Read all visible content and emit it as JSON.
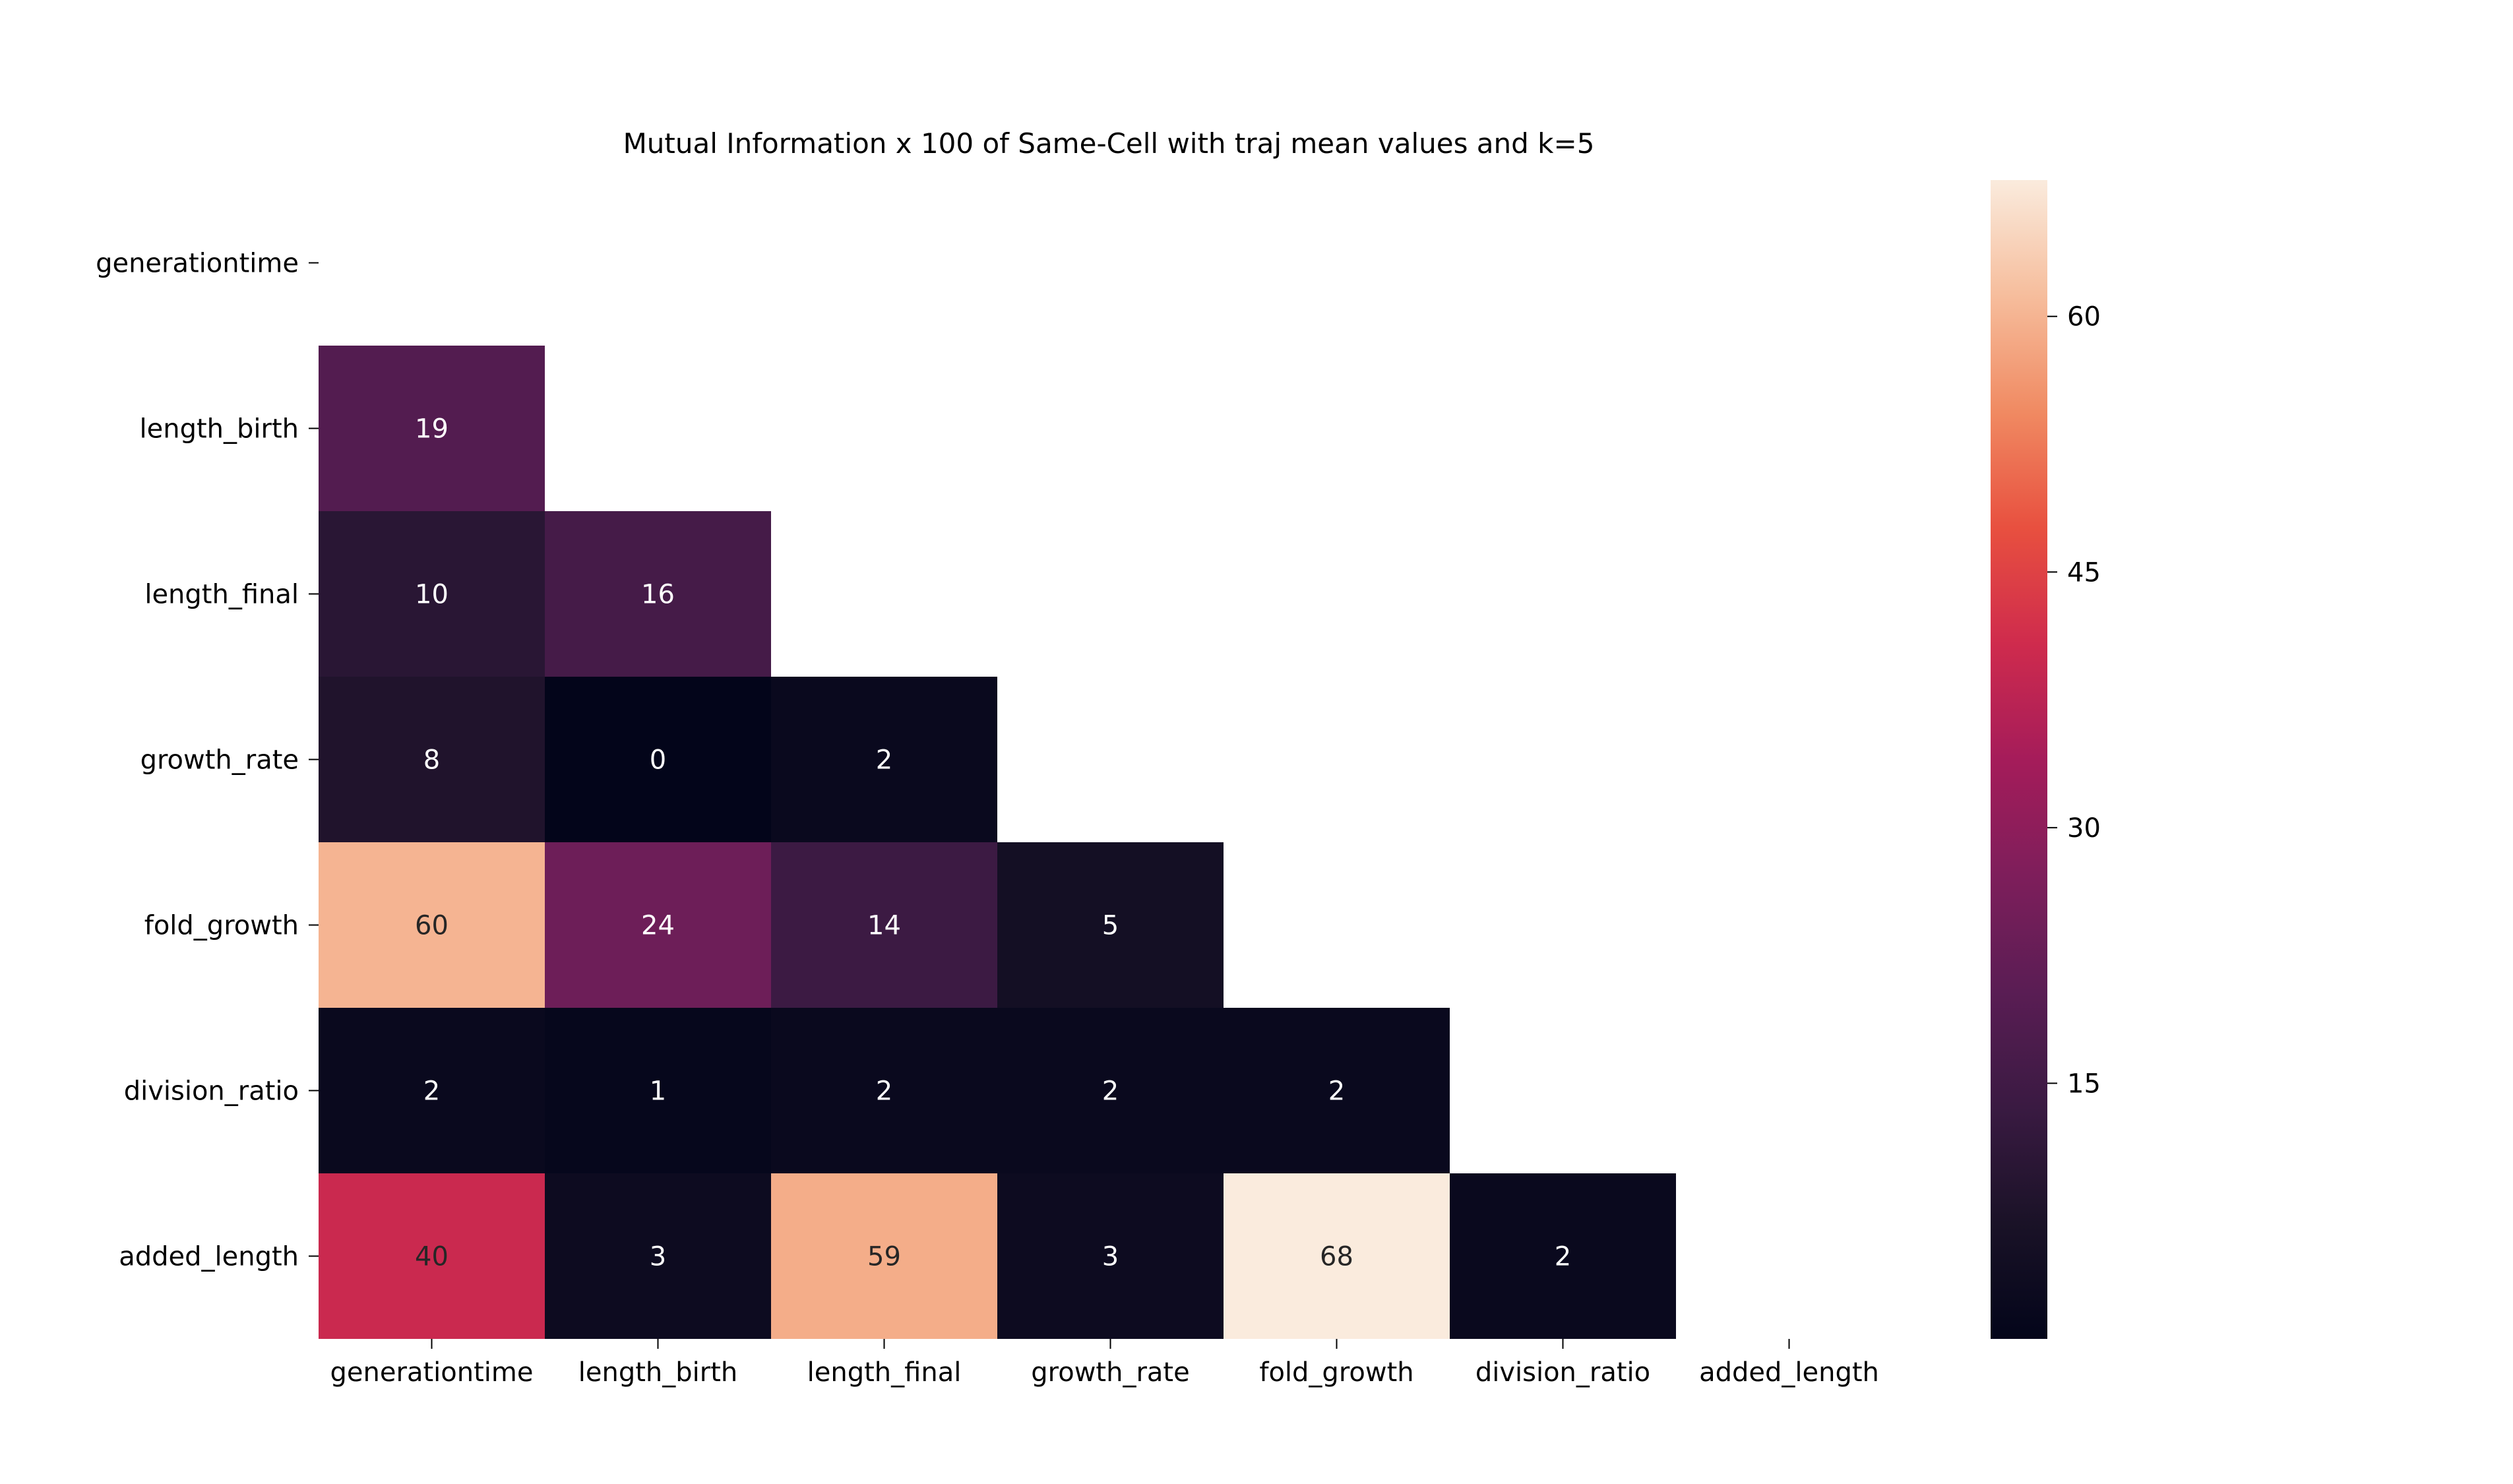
{
  "chart_data": {
    "type": "heatmap",
    "title": "Mutual Information x 100 of Same-Cell with traj mean values and k=5",
    "row_labels": [
      "generationtime",
      "length_birth",
      "length_final",
      "growth_rate",
      "fold_growth",
      "division_ratio",
      "added_length"
    ],
    "col_labels": [
      "generationtime",
      "length_birth",
      "length_final",
      "growth_rate",
      "fold_growth",
      "division_ratio",
      "added_length"
    ],
    "mask": "upper-triangle-including-diagonal",
    "values": [
      [
        null,
        null,
        null,
        null,
        null,
        null,
        null
      ],
      [
        19,
        null,
        null,
        null,
        null,
        null,
        null
      ],
      [
        10,
        16,
        null,
        null,
        null,
        null,
        null
      ],
      [
        8,
        0,
        2,
        null,
        null,
        null,
        null
      ],
      [
        60,
        24,
        14,
        5,
        null,
        null,
        null
      ],
      [
        2,
        1,
        2,
        2,
        2,
        null,
        null
      ],
      [
        40,
        3,
        59,
        3,
        68,
        2,
        null
      ]
    ],
    "colormap": "rocket",
    "colorbar": {
      "vmin": 0,
      "vmax": 68,
      "ticks": [
        15,
        30,
        45,
        60
      ],
      "tick_labels": [
        "15",
        "30",
        "45",
        "60"
      ]
    },
    "annotation_colors": {
      "on_dark": "#ffffff",
      "on_light": "#262626"
    }
  }
}
